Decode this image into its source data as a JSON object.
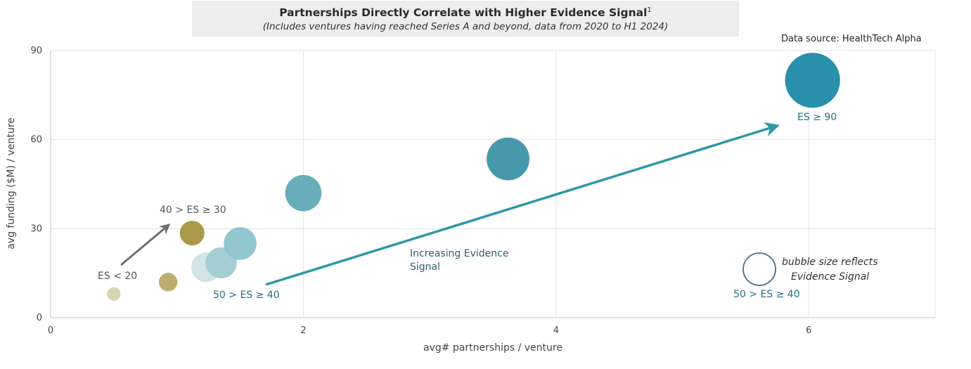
{
  "header": {
    "title": "Partnerships Directly Correlate with Higher Evidence Signal",
    "title_superscript": "1",
    "subtitle": "(Includes ventures having reached Series A and beyond, data from 2020 to H1 2024)",
    "source": "Data source: HealthTech Alpha"
  },
  "chart_data": {
    "type": "scatter",
    "xlabel": "avg# partnerships / venture",
    "ylabel": "avg funding ($M) / venture",
    "xlim": [
      0,
      7
    ],
    "ylim": [
      0,
      90
    ],
    "x_ticks": [
      0,
      2,
      4,
      6
    ],
    "y_ticks": [
      0,
      30,
      60,
      90
    ],
    "grid": true,
    "points": [
      {
        "x": 0.5,
        "y": 8,
        "evidence_signal": 10,
        "color": "#d6d1ad"
      },
      {
        "x": 0.93,
        "y": 12,
        "evidence_signal": 20,
        "color": "#b8a966"
      },
      {
        "x": 1.12,
        "y": 28.5,
        "evidence_signal": 32,
        "color": "#a4943e"
      },
      {
        "x": 1.23,
        "y": 17,
        "evidence_signal": 42,
        "color": "#cfe3e6"
      },
      {
        "x": 1.35,
        "y": 18.5,
        "evidence_signal": 45,
        "color": "#9fcbd2"
      },
      {
        "x": 1.5,
        "y": 25,
        "evidence_signal": 48,
        "color": "#8dc4cd"
      },
      {
        "x": 2.0,
        "y": 42,
        "evidence_signal": 55,
        "color": "#5fa9b6"
      },
      {
        "x": 3.62,
        "y": 53.5,
        "evidence_signal": 68,
        "color": "#3c93a6"
      },
      {
        "x": 6.03,
        "y": 80,
        "evidence_signal": 92,
        "color": "#1e8aa6"
      }
    ],
    "annotations": {
      "es_low": "ES < 20",
      "es_30_40": "40 > ES ≥ 30",
      "es_40_50": "50 > ES ≥ 40",
      "es_90": "ES ≥ 90",
      "trend_line1": "Increasing Evidence",
      "trend_line2": "Signal",
      "legend_line1": "bubble size reflects",
      "legend_line2": "Evidence Signal",
      "legend_example": "50 > ES ≥ 40"
    },
    "colors": {
      "trend_arrow": "#2e98a6",
      "small_arrow": "#6e6e6e",
      "legend_circle": "#4b6e8a"
    }
  }
}
